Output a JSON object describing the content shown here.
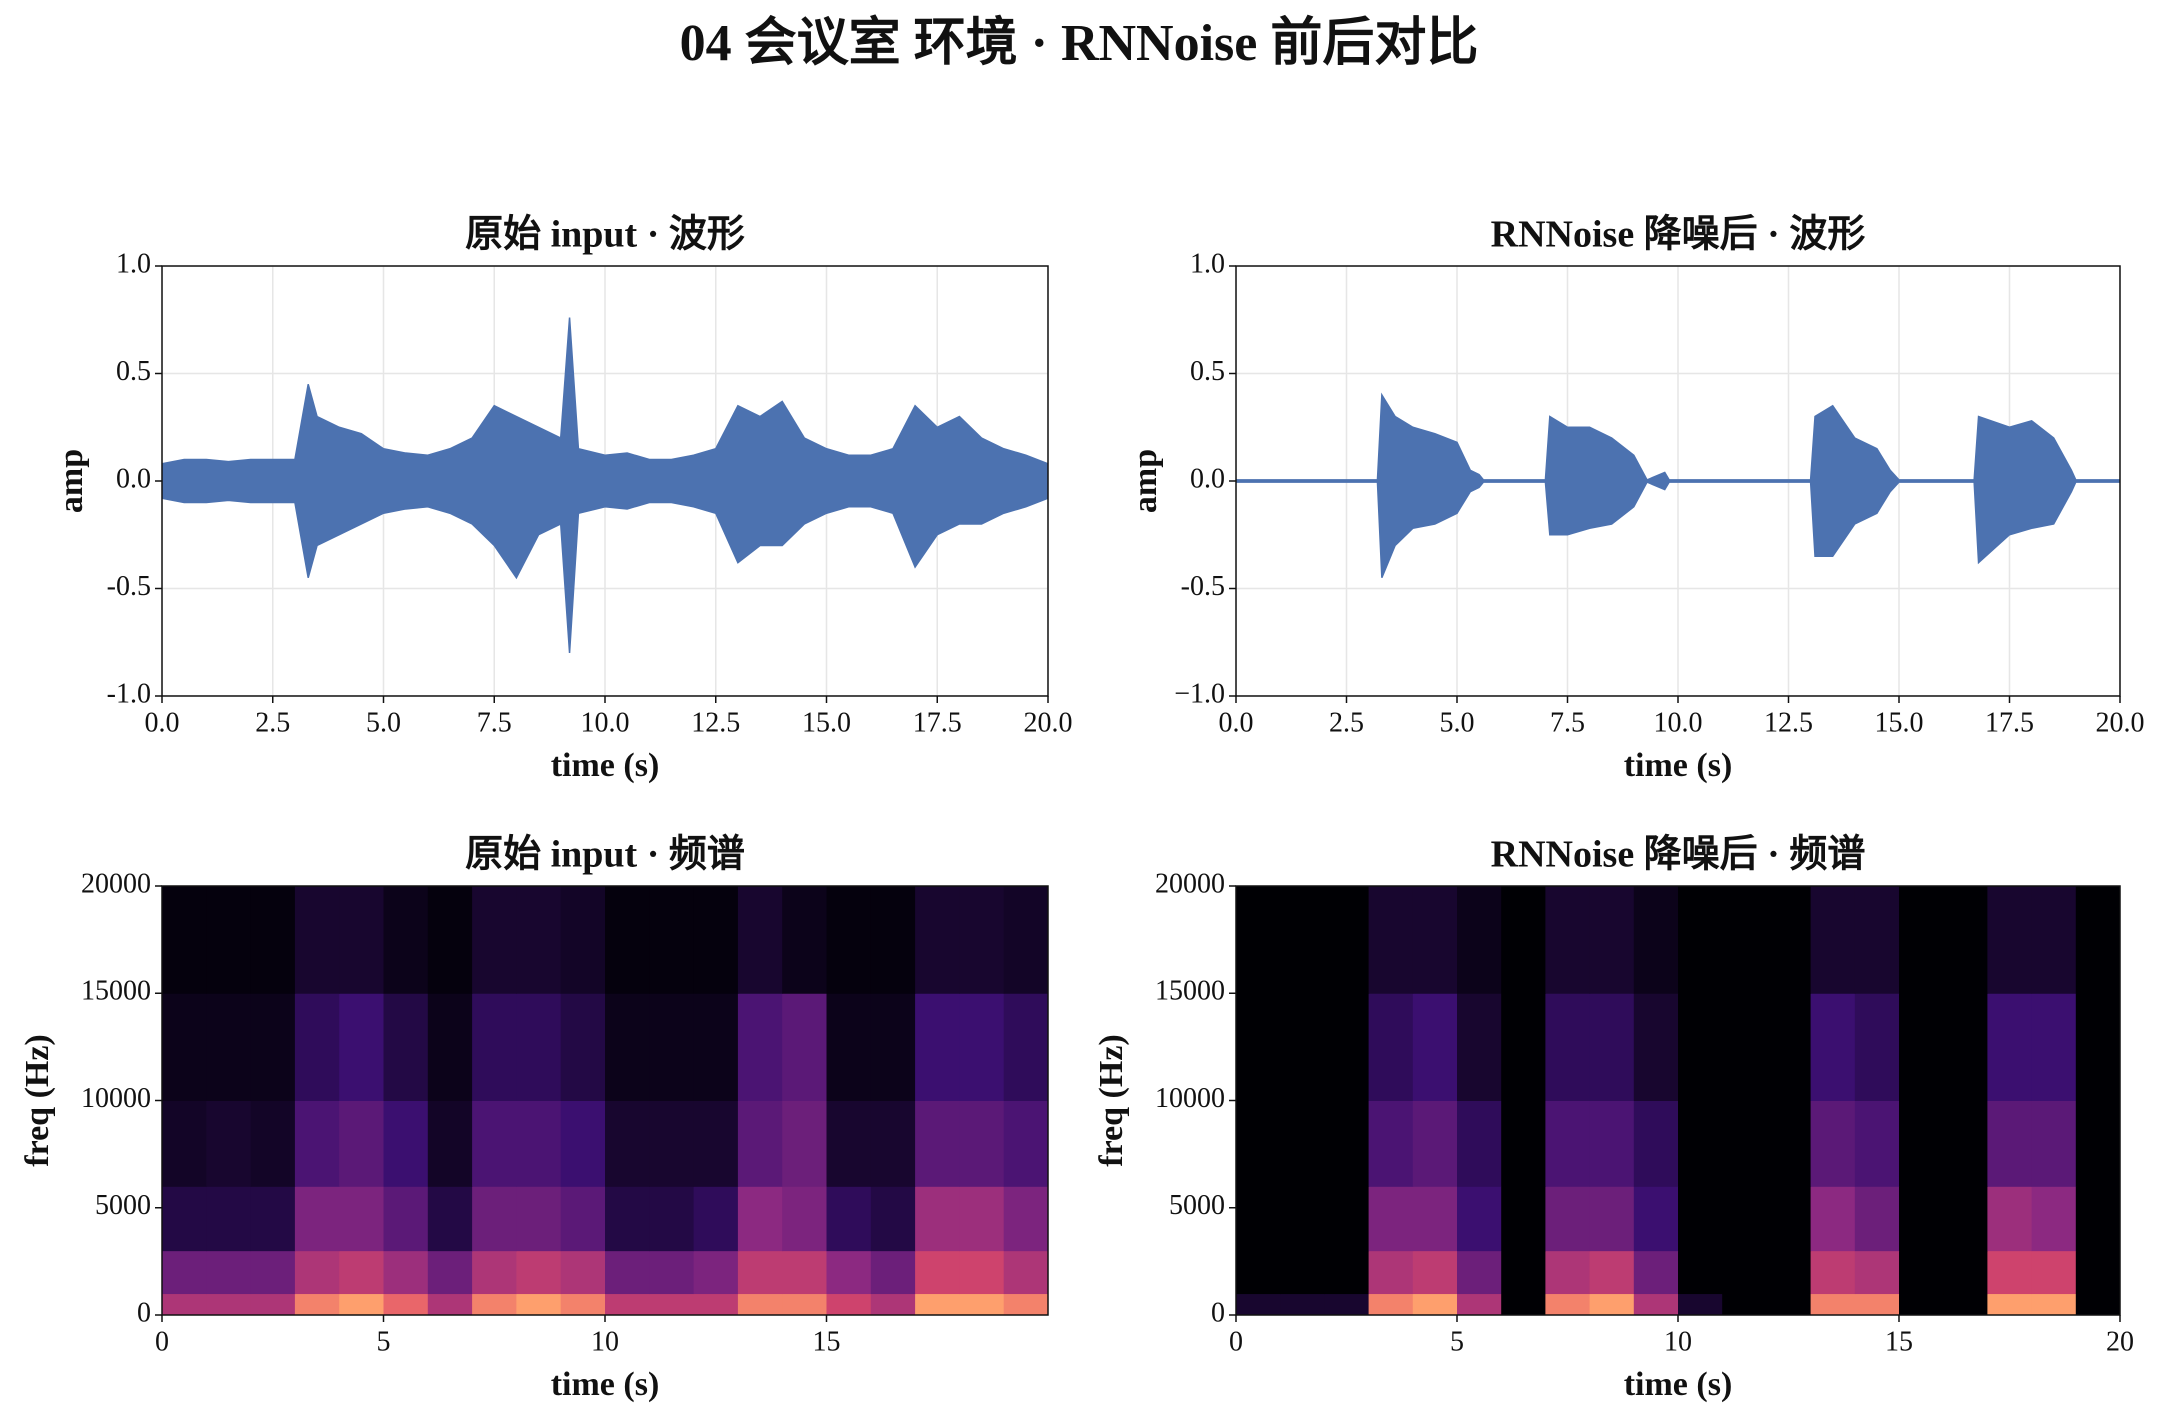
{
  "title": "04 会议室 环境 · RNNoise 前后对比",
  "chart_data": [
    {
      "type": "waveform",
      "title": "原始 input · 波形",
      "xlabel": "time (s)",
      "ylabel": "amp",
      "xlim": [
        0,
        20
      ],
      "ylim": [
        -1,
        1
      ],
      "xticks": [
        {
          "value": 0,
          "label": "0.0"
        },
        2.5,
        {
          "value": 5,
          "label": "5.0"
        },
        7.5,
        {
          "value": 10,
          "label": "10.0"
        },
        12.5,
        {
          "value": 15,
          "label": "15.0"
        },
        17.5,
        {
          "value": 20,
          "label": "20.0"
        }
      ],
      "yticks": [
        {
          "value": -1,
          "label": "-1.0"
        },
        -0.5,
        {
          "value": 0,
          "label": "0.0"
        },
        0.5,
        {
          "value": 1,
          "label": "1.0"
        }
      ],
      "grid": true,
      "color": "#4c72b0",
      "x": [
        0,
        0.5,
        1,
        1.5,
        2,
        2.5,
        3,
        3.3,
        3.5,
        4,
        4.5,
        5,
        5.5,
        6,
        6.5,
        7,
        7.5,
        8,
        8.5,
        9,
        9.2,
        9.4,
        10,
        10.5,
        11,
        11.5,
        12,
        12.5,
        13,
        13.5,
        14,
        14.5,
        15,
        15.5,
        16,
        16.5,
        17,
        17.5,
        18,
        18.5,
        19,
        19.5,
        20
      ],
      "max": [
        0.08,
        0.1,
        0.1,
        0.09,
        0.1,
        0.1,
        0.1,
        0.45,
        0.3,
        0.25,
        0.22,
        0.15,
        0.13,
        0.12,
        0.15,
        0.2,
        0.35,
        0.3,
        0.25,
        0.2,
        0.76,
        0.15,
        0.12,
        0.13,
        0.1,
        0.1,
        0.12,
        0.15,
        0.35,
        0.3,
        0.37,
        0.2,
        0.15,
        0.12,
        0.12,
        0.15,
        0.35,
        0.25,
        0.3,
        0.2,
        0.15,
        0.12,
        0.08
      ],
      "min": [
        -0.08,
        -0.1,
        -0.1,
        -0.09,
        -0.1,
        -0.1,
        -0.1,
        -0.45,
        -0.3,
        -0.25,
        -0.2,
        -0.15,
        -0.13,
        -0.12,
        -0.15,
        -0.2,
        -0.3,
        -0.45,
        -0.25,
        -0.2,
        -0.8,
        -0.15,
        -0.12,
        -0.13,
        -0.1,
        -0.1,
        -0.12,
        -0.15,
        -0.38,
        -0.3,
        -0.3,
        -0.2,
        -0.15,
        -0.12,
        -0.12,
        -0.15,
        -0.4,
        -0.25,
        -0.2,
        -0.2,
        -0.15,
        -0.12,
        -0.08
      ]
    },
    {
      "type": "waveform",
      "title": "RNNoise 降噪后 · 波形",
      "xlabel": "time (s)",
      "ylabel": "amp",
      "xlim": [
        0,
        20
      ],
      "ylim": [
        -1,
        1
      ],
      "xticks": [
        {
          "value": 0,
          "label": "0.0"
        },
        2.5,
        {
          "value": 5,
          "label": "5.0"
        },
        7.5,
        {
          "value": 10,
          "label": "10.0"
        },
        12.5,
        {
          "value": 15,
          "label": "15.0"
        },
        17.5,
        {
          "value": 20,
          "label": "20.0"
        }
      ],
      "yticks": [
        {
          "value": -1,
          "label": "−1.0"
        },
        -0.5,
        {
          "value": 0,
          "label": "0.0"
        },
        0.5,
        {
          "value": 1,
          "label": "1.0"
        }
      ],
      "grid": true,
      "color": "#4c72b0",
      "x": [
        0,
        3.2,
        3.3,
        3.6,
        4,
        4.5,
        5,
        5.3,
        5.5,
        5.6,
        7,
        7.1,
        7.5,
        8,
        8.5,
        9,
        9.3,
        9.7,
        9.8,
        13,
        13.1,
        13.5,
        14,
        14.5,
        14.8,
        15,
        16.7,
        16.8,
        17.5,
        18,
        18.5,
        18.9,
        19,
        20
      ],
      "max": [
        0.005,
        0.005,
        0.4,
        0.3,
        0.25,
        0.22,
        0.18,
        0.05,
        0.03,
        0.005,
        0.005,
        0.3,
        0.25,
        0.25,
        0.2,
        0.12,
        0.005,
        0.04,
        0.005,
        0.005,
        0.3,
        0.35,
        0.2,
        0.15,
        0.05,
        0.005,
        0.005,
        0.3,
        0.25,
        0.28,
        0.2,
        0.05,
        0.005,
        0.005
      ],
      "min": [
        -0.005,
        -0.005,
        -0.45,
        -0.3,
        -0.22,
        -0.2,
        -0.15,
        -0.05,
        -0.03,
        -0.005,
        -0.005,
        -0.25,
        -0.25,
        -0.22,
        -0.2,
        -0.12,
        -0.005,
        -0.04,
        -0.005,
        -0.005,
        -0.35,
        -0.35,
        -0.2,
        -0.15,
        -0.05,
        -0.005,
        -0.005,
        -0.38,
        -0.25,
        -0.22,
        -0.2,
        -0.05,
        -0.005,
        -0.005
      ]
    },
    {
      "type": "spectrogram",
      "title": "原始 input · 频谱",
      "xlabel": "time (s)",
      "ylabel": "freq (Hz)",
      "xlim": [
        0,
        20
      ],
      "ylim": [
        0,
        20000
      ],
      "xticks": [
        0,
        5,
        10,
        15
      ],
      "yticks": [
        0,
        5000,
        10000,
        15000,
        20000
      ],
      "cmap": "magma",
      "time_edges": [
        0,
        1,
        2,
        3,
        4,
        5,
        6,
        7,
        8,
        9,
        10,
        11,
        12,
        13,
        14,
        15,
        16,
        17,
        18,
        19,
        20
      ],
      "freq_edges": [
        0,
        1000,
        3000,
        6000,
        10000,
        15000,
        20000
      ],
      "z": [
        [
          0.6,
          0.6,
          0.6,
          0.85,
          0.9,
          0.8,
          0.6,
          0.85,
          0.9,
          0.85,
          0.65,
          0.65,
          0.65,
          0.85,
          0.85,
          0.7,
          0.6,
          0.9,
          0.9,
          0.85
        ],
        [
          0.4,
          0.4,
          0.4,
          0.6,
          0.65,
          0.55,
          0.4,
          0.6,
          0.65,
          0.6,
          0.4,
          0.4,
          0.45,
          0.65,
          0.65,
          0.5,
          0.4,
          0.7,
          0.7,
          0.6
        ],
        [
          0.15,
          0.15,
          0.15,
          0.45,
          0.45,
          0.35,
          0.15,
          0.4,
          0.4,
          0.35,
          0.15,
          0.15,
          0.2,
          0.5,
          0.45,
          0.2,
          0.15,
          0.55,
          0.55,
          0.45
        ],
        [
          0.08,
          0.1,
          0.08,
          0.3,
          0.35,
          0.25,
          0.08,
          0.3,
          0.3,
          0.25,
          0.1,
          0.1,
          0.1,
          0.35,
          0.4,
          0.1,
          0.1,
          0.35,
          0.35,
          0.3
        ],
        [
          0.05,
          0.05,
          0.05,
          0.2,
          0.25,
          0.15,
          0.05,
          0.2,
          0.2,
          0.15,
          0.05,
          0.05,
          0.05,
          0.3,
          0.35,
          0.05,
          0.05,
          0.25,
          0.25,
          0.2
        ],
        [
          0.02,
          0.02,
          0.02,
          0.1,
          0.1,
          0.05,
          0.02,
          0.1,
          0.1,
          0.08,
          0.02,
          0.02,
          0.02,
          0.1,
          0.05,
          0.02,
          0.02,
          0.1,
          0.1,
          0.08
        ]
      ]
    },
    {
      "type": "spectrogram",
      "title": "RNNoise 降噪后 · 频谱",
      "xlabel": "time (s)",
      "ylabel": "freq (Hz)",
      "xlim": [
        0,
        20
      ],
      "ylim": [
        0,
        20000
      ],
      "xticks": [
        0,
        5,
        10,
        15,
        20
      ],
      "yticks": [
        0,
        5000,
        10000,
        15000,
        20000
      ],
      "cmap": "magma",
      "time_edges": [
        0,
        1,
        2,
        3,
        4,
        5,
        6,
        7,
        8,
        9,
        10,
        11,
        12,
        13,
        14,
        15,
        16,
        17,
        18,
        19,
        20
      ],
      "freq_edges": [
        0,
        1000,
        3000,
        6000,
        10000,
        15000,
        20000
      ],
      "z": [
        [
          0.1,
          0.1,
          0.1,
          0.85,
          0.9,
          0.6,
          0,
          0.85,
          0.9,
          0.6,
          0.1,
          0,
          0,
          0.85,
          0.85,
          0,
          0,
          0.9,
          0.9,
          0
        ],
        [
          0,
          0,
          0,
          0.6,
          0.65,
          0.4,
          0,
          0.6,
          0.65,
          0.4,
          0,
          0,
          0,
          0.65,
          0.6,
          0,
          0,
          0.7,
          0.7,
          0
        ],
        [
          0,
          0,
          0,
          0.45,
          0.45,
          0.25,
          0,
          0.4,
          0.4,
          0.25,
          0,
          0,
          0,
          0.5,
          0.4,
          0,
          0,
          0.55,
          0.5,
          0
        ],
        [
          0,
          0,
          0,
          0.3,
          0.35,
          0.2,
          0,
          0.3,
          0.3,
          0.2,
          0,
          0,
          0,
          0.35,
          0.3,
          0,
          0,
          0.35,
          0.35,
          0
        ],
        [
          0,
          0,
          0,
          0.2,
          0.25,
          0.1,
          0,
          0.2,
          0.2,
          0.1,
          0,
          0,
          0,
          0.25,
          0.2,
          0,
          0,
          0.25,
          0.25,
          0
        ],
        [
          0,
          0,
          0,
          0.1,
          0.1,
          0.05,
          0,
          0.1,
          0.1,
          0.05,
          0,
          0,
          0,
          0.1,
          0.1,
          0,
          0,
          0.1,
          0.1,
          0
        ]
      ]
    }
  ]
}
